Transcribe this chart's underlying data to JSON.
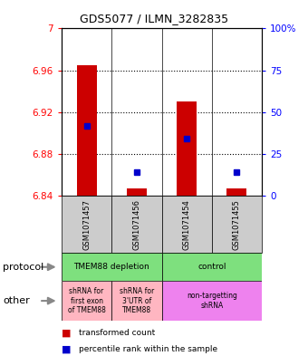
{
  "title": "GDS5077 / ILMN_3282835",
  "samples": [
    "GSM1071457",
    "GSM1071456",
    "GSM1071454",
    "GSM1071455"
  ],
  "red_values": [
    6.965,
    6.847,
    6.93,
    6.847
  ],
  "blue_values": [
    6.907,
    6.863,
    6.895,
    6.863
  ],
  "ylim_left": [
    6.84,
    7.0
  ],
  "ylim_right": [
    0,
    100
  ],
  "left_ticks": [
    6.84,
    6.88,
    6.92,
    6.96,
    7.0
  ],
  "right_ticks": [
    0,
    25,
    50,
    75,
    100
  ],
  "left_tick_labels": [
    "6.84",
    "6.88",
    "6.92",
    "6.96",
    "7"
  ],
  "right_tick_labels": [
    "0",
    "25",
    "50",
    "75",
    "100%"
  ],
  "dotted_lines": [
    6.88,
    6.92,
    6.96
  ],
  "bar_bottom": 6.84,
  "bar_width": 0.4,
  "bar_color_red": "#CC0000",
  "bar_color_blue": "#0000CC",
  "bg_color": "#CCCCCC",
  "protocol_green": "#7EE07E",
  "other_pink": "#FFB6C1",
  "other_purple": "#EE82EE",
  "protocol_groups": [
    {
      "label": "TMEM88 depletion",
      "span": [
        0,
        2
      ],
      "color": "#7EE07E"
    },
    {
      "label": "control",
      "span": [
        2,
        4
      ],
      "color": "#7EE07E"
    }
  ],
  "other_groups": [
    {
      "label": "shRNA for\nfirst exon\nof TMEM88",
      "span": [
        0,
        1
      ],
      "color": "#FFB6C1"
    },
    {
      "label": "shRNA for\n3'UTR of\nTMEM88",
      "span": [
        1,
        2
      ],
      "color": "#FFB6C1"
    },
    {
      "label": "non-targetting\nshRNA",
      "span": [
        2,
        4
      ],
      "color": "#EE82EE"
    }
  ],
  "protocol_label": "protocol",
  "other_label": "other",
  "legend_red_label": "transformed count",
  "legend_blue_label": "percentile rank within the sample",
  "fig_width": 3.4,
  "fig_height": 3.93,
  "dpi": 100
}
